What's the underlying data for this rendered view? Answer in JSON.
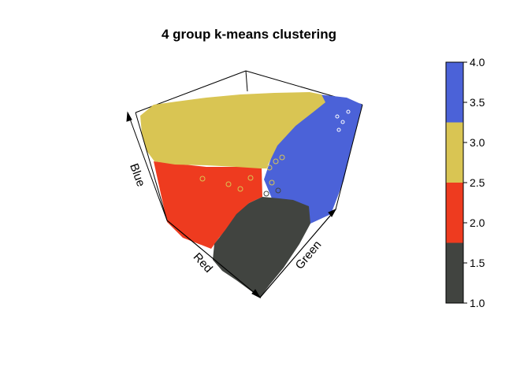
{
  "chart_data": {
    "type": "scatter3d",
    "title": "4 group k-means clustering",
    "axes": {
      "x": "Red",
      "y": "Green",
      "z": "Blue"
    },
    "clusters": [
      {
        "id": 1,
        "color": "#414440",
        "region": "low red / low green / low blue"
      },
      {
        "id": 2,
        "color": "#ee3b1f",
        "region": "high red / low green"
      },
      {
        "id": 3,
        "color": "#d9c553",
        "region": "high blue / high red"
      },
      {
        "id": 4,
        "color": "#4b62d8",
        "region": "high green"
      }
    ],
    "colorbar": {
      "range": [
        1.0,
        4.0
      ],
      "ticks": [
        "1.0",
        "1.5",
        "2.0",
        "2.5",
        "3.0",
        "3.5",
        "4.0"
      ],
      "bands": [
        {
          "from": 1.0,
          "to": 1.75,
          "color": "#414440"
        },
        {
          "from": 1.75,
          "to": 2.5,
          "color": "#ee3b1f"
        },
        {
          "from": 2.5,
          "to": 3.25,
          "color": "#d9c553"
        },
        {
          "from": 3.25,
          "to": 4.0,
          "color": "#4b62d8"
        }
      ]
    }
  }
}
